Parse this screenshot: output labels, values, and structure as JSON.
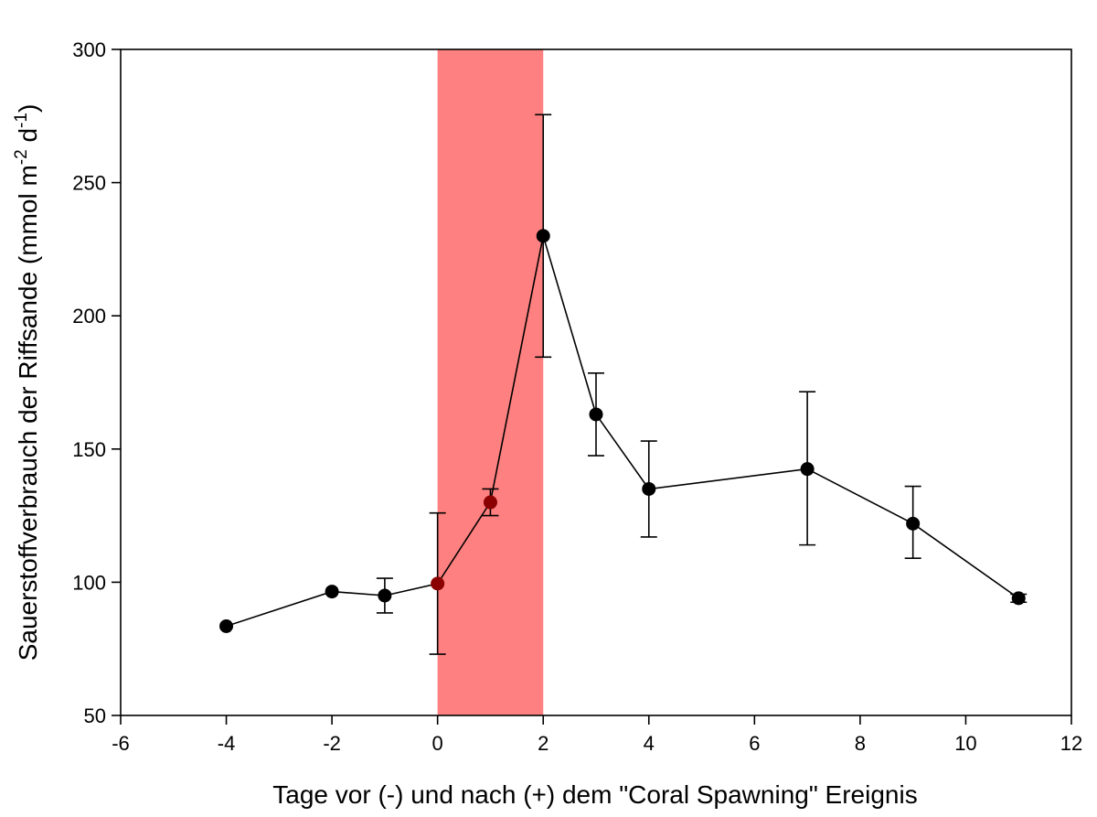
{
  "chart_data": {
    "type": "scatter",
    "title": "",
    "xlabel": "Tage vor (-) und nach (+) dem \"Coral Spawning\" Ereignis",
    "ylabel": {
      "main": "Sauerstoffverbrauch der Riffsande (mmol m",
      "sup1": "-2",
      "mid": " d",
      "sup2": "-1",
      "end": ")"
    },
    "xlim": [
      -6,
      12
    ],
    "ylim": [
      50,
      300
    ],
    "xticks": [
      -6,
      -4,
      -2,
      0,
      2,
      4,
      6,
      8,
      10,
      12
    ],
    "yticks": [
      50,
      100,
      150,
      200,
      250,
      300
    ],
    "grid": false,
    "legend": "none",
    "highlight_region": {
      "x0": 0,
      "x1": 2,
      "color": "#ff8080"
    },
    "series": [
      {
        "color": "#000000",
        "line": true,
        "points": [
          {
            "x": -4,
            "y": 83.5,
            "err_low": null,
            "err_high": null
          },
          {
            "x": -2,
            "y": 96.5,
            "err_low": null,
            "err_high": null
          },
          {
            "x": -1,
            "y": 95,
            "err_low": 88.5,
            "err_high": 101.5
          },
          {
            "x": 0,
            "y": 99.5,
            "err_low": 73,
            "err_high": 126
          },
          {
            "x": 1,
            "y": 130,
            "err_low": 125,
            "err_high": 135
          },
          {
            "x": 2,
            "y": 230,
            "err_low": 184.5,
            "err_high": 275.5
          },
          {
            "x": 3,
            "y": 163,
            "err_low": 147.5,
            "err_high": 178.5
          },
          {
            "x": 4,
            "y": 135,
            "err_low": 117,
            "err_high": 153
          },
          {
            "x": 7,
            "y": 142.5,
            "err_low": 114,
            "err_high": 171.5
          },
          {
            "x": 9,
            "y": 122,
            "err_low": 109,
            "err_high": 136
          },
          {
            "x": 11,
            "y": 94,
            "err_low": 92.5,
            "err_high": 95.5
          }
        ]
      }
    ]
  }
}
